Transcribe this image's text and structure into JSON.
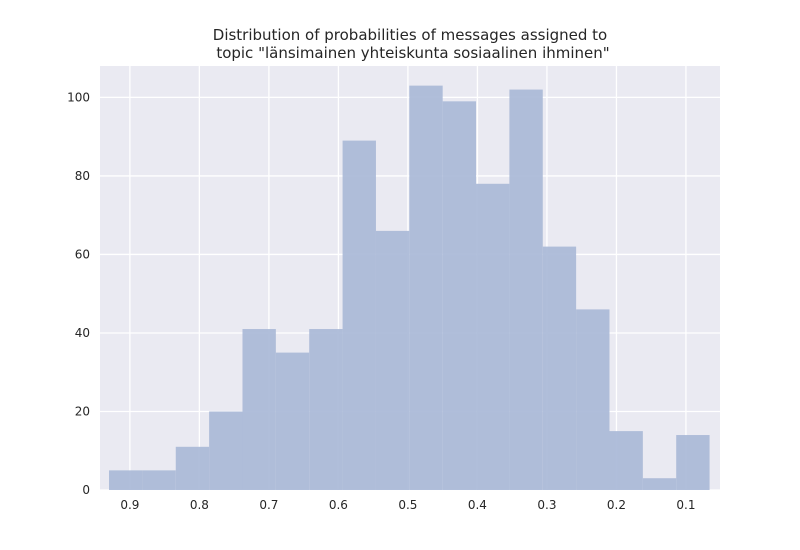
{
  "chart_data": {
    "type": "bar",
    "title_lines": [
      "Distribution of probabilities of messages assigned to",
      "topic \"länsimainen yhteiskunta sosiaalinen ihminen\""
    ],
    "xlabel": "",
    "ylabel": "",
    "x_reversed": true,
    "xlim": [
      0.943,
      0.051
    ],
    "ylim": [
      0,
      108
    ],
    "x_ticks": [
      0.9,
      0.8,
      0.7,
      0.6,
      0.5,
      0.4,
      0.3,
      0.2,
      0.1
    ],
    "x_tick_labels": [
      "0.9",
      "0.8",
      "0.7",
      "0.6",
      "0.5",
      "0.4",
      "0.3",
      "0.2",
      "0.1"
    ],
    "y_ticks": [
      0,
      20,
      40,
      60,
      80,
      100
    ],
    "y_tick_labels": [
      "0",
      "20",
      "40",
      "60",
      "80",
      "100"
    ],
    "bin_edges": [
      0.93,
      0.882,
      0.834,
      0.786,
      0.738,
      0.69,
      0.642,
      0.594,
      0.546,
      0.498,
      0.45,
      0.402,
      0.354,
      0.306,
      0.258,
      0.21,
      0.162,
      0.114,
      0.066
    ],
    "values": [
      5,
      5,
      11,
      20,
      41,
      35,
      41,
      89,
      66,
      103,
      99,
      78,
      102,
      62,
      46,
      15,
      3,
      14
    ],
    "grid": true,
    "colors": {
      "bar": "#a9b9d7",
      "plot_background": "#eaeaf2",
      "grid": "#ffffff",
      "text": "#262626"
    }
  }
}
